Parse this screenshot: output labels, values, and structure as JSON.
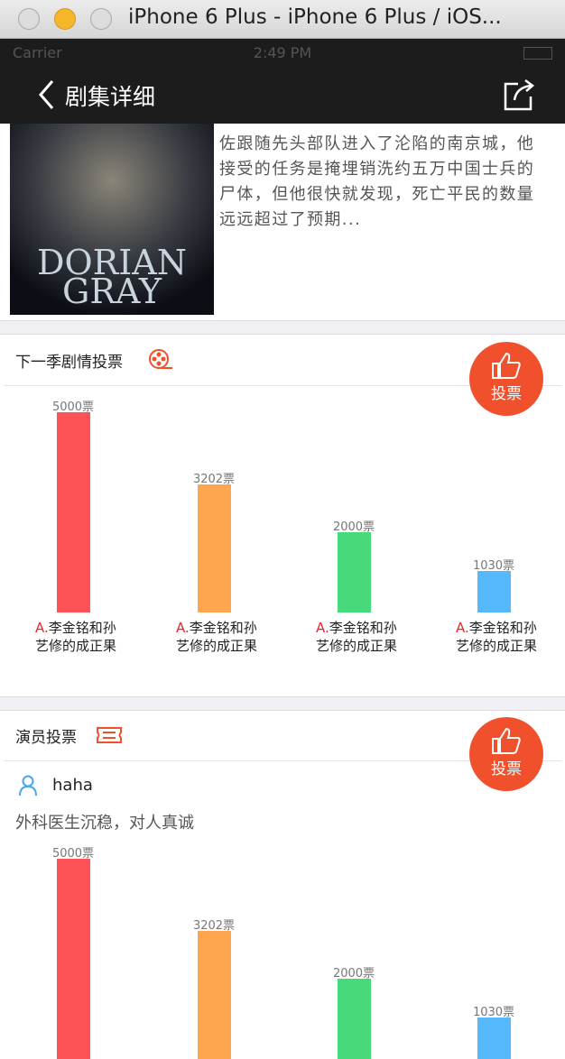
{
  "window": {
    "title": "iPhone 6 Plus - iPhone 6 Plus / iOS..."
  },
  "status_bar": {
    "carrier": "Carrier",
    "time": "2:49 PM"
  },
  "nav": {
    "title": "剧集详细"
  },
  "poster": {
    "lines": [
      "DORIAN",
      "GRAY"
    ]
  },
  "synopsis": "佐跟随先头部队进入了沦陷的南京城，他接受的任务是掩埋销洗约五万中国士兵的尸体，但他很快就发现，死亡平民的数量远远超过了预期...",
  "plot_vote": {
    "title": "下一季剧情投票",
    "button": "投票",
    "options": [
      {
        "votes": 5000,
        "votes_label": "5000票",
        "letter": "A.",
        "text": "李金铭和孙艺修的成正果"
      },
      {
        "votes": 3202,
        "votes_label": "3202票",
        "letter": "A.",
        "text": "李金铭和孙艺修的成正果"
      },
      {
        "votes": 2000,
        "votes_label": "2000票",
        "letter": "A.",
        "text": "李金铭和孙艺修的成正果"
      },
      {
        "votes": 1030,
        "votes_label": "1030票",
        "letter": "A.",
        "text": "李金铭和孙艺修的成正果"
      }
    ]
  },
  "actor_vote": {
    "title": "演员投票",
    "button": "投票",
    "actor": "haha",
    "description": "外科医生沉稳，对人真诚",
    "options": [
      {
        "votes": 5000,
        "votes_label": "5000票"
      },
      {
        "votes": 3202,
        "votes_label": "3202票"
      },
      {
        "votes": 2000,
        "votes_label": "2000票"
      },
      {
        "votes": 1030,
        "votes_label": "1030票"
      }
    ]
  }
}
